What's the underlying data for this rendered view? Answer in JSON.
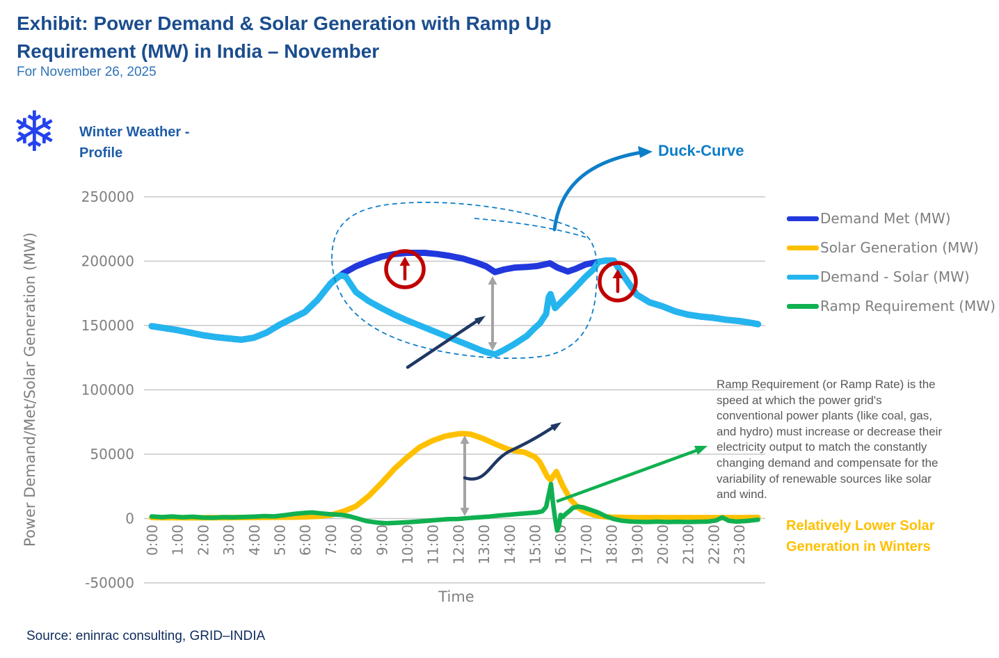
{
  "header": {
    "title": "Exhibit: Power Demand & Solar Generation with Ramp Up Requirement (MW) in India – November",
    "subtitle": "For November 26, 2025"
  },
  "winter_profile": {
    "icon": "snowflake-icon",
    "glyph": "❄",
    "label": "Winter Weather - Profile"
  },
  "annotations": {
    "duck_curve_label": "Duck-Curve",
    "ramp_note": "Ramp Requirement (or Ramp Rate) is the speed at which the power grid's conventional power plants (like coal, gas, and hydro) must increase or decrease their electricity output to match the constantly changing demand and compensate for the variability of renewable sources like solar and wind.",
    "low_solar_note": "Relatively Lower Solar Generation in Winters",
    "accent_colors": {
      "duck_arrow_blue": "#0E7EC8",
      "ramp_up_circle_red": "#C00000",
      "pointer_navy": "#1F3864",
      "gap_arrow_gray": "#A3A3A3",
      "low_solar_arrow_green": "#10B050"
    }
  },
  "footer": {
    "source": "Source: eninrac consulting, GRID–INDIA"
  },
  "legend": {
    "position": "right",
    "items": [
      {
        "label": "Demand Met (MW)",
        "color": "#2238DC"
      },
      {
        "label": "Solar Generation (MW)",
        "color": "#FFC000"
      },
      {
        "label": "Demand - Solar (MW)",
        "color": "#25B5EE"
      },
      {
        "label": "Ramp Requirement (MW)",
        "color": "#10B050"
      }
    ]
  },
  "chart_data": {
    "type": "line",
    "title": "Power Demand & Solar Generation with Ramp Up Requirement (MW) in India – November, for November 26, 2025",
    "xlabel": "Time",
    "ylabel": "Power Demand/Met/Solar Generation (MW)",
    "grid": true,
    "ylim": [
      -50000,
      250000
    ],
    "xlim_hours": [
      0,
      23.75
    ],
    "x_ticks": [
      "0:00",
      "1:00",
      "2:00",
      "3:00",
      "4:00",
      "5:00",
      "6:00",
      "7:00",
      "8:00",
      "9:00",
      "10:00",
      "11:00",
      "12:00",
      "13:00",
      "14:00",
      "15:00",
      "16:00",
      "17:00",
      "18:00",
      "19:00",
      "20:00",
      "21:00",
      "22:00",
      "23:00"
    ],
    "y_ticks": [
      {
        "label": "250000",
        "value": 250000
      },
      {
        "label": "200000",
        "value": 200000
      },
      {
        "label": "150000",
        "value": 150000
      },
      {
        "label": "100000",
        "value": 100000
      },
      {
        "label": "50000",
        "value": 50000
      },
      {
        "label": "0",
        "value": 0
      },
      {
        "label": "-50000",
        "value": -50000
      }
    ],
    "series": [
      {
        "name": "Demand Met (MW)",
        "color": "#2238DC",
        "points": [
          [
            0,
            149500
          ],
          [
            0.5,
            148000
          ],
          [
            1,
            146500
          ],
          [
            1.5,
            144500
          ],
          [
            2,
            142500
          ],
          [
            2.5,
            141000
          ],
          [
            3,
            140000
          ],
          [
            3.5,
            139000
          ],
          [
            4,
            140500
          ],
          [
            4.5,
            144500
          ],
          [
            5,
            150500
          ],
          [
            5.5,
            155500
          ],
          [
            6,
            160500
          ],
          [
            6.5,
            170000
          ],
          [
            7,
            182500
          ],
          [
            7.2,
            186000
          ],
          [
            7.5,
            190500
          ],
          [
            8,
            196000
          ],
          [
            8.5,
            200000
          ],
          [
            9,
            203500
          ],
          [
            9.5,
            205500
          ],
          [
            10,
            206500
          ],
          [
            10.7,
            206500
          ],
          [
            11.2,
            205500
          ],
          [
            11.7,
            204000
          ],
          [
            12.2,
            202000
          ],
          [
            12.7,
            199000
          ],
          [
            13.1,
            196000
          ],
          [
            13.45,
            191500
          ],
          [
            13.8,
            193500
          ],
          [
            14.2,
            195000
          ],
          [
            14.7,
            195500
          ],
          [
            15.1,
            196200
          ],
          [
            15.6,
            198400
          ],
          [
            15.9,
            195000
          ],
          [
            16.3,
            192000
          ],
          [
            16.6,
            194000
          ],
          [
            17,
            197500
          ],
          [
            17.5,
            199500
          ],
          [
            17.8,
            200500
          ],
          [
            18.1,
            200300
          ],
          [
            18.4,
            191000
          ],
          [
            18.7,
            182500
          ],
          [
            19,
            174000
          ],
          [
            19.5,
            168000
          ],
          [
            20,
            165000
          ],
          [
            20.5,
            161000
          ],
          [
            21,
            158500
          ],
          [
            21.5,
            157000
          ],
          [
            22,
            156000
          ],
          [
            22.5,
            154500
          ],
          [
            23,
            153500
          ],
          [
            23.5,
            152000
          ],
          [
            23.75,
            151000
          ]
        ]
      },
      {
        "name": "Solar Generation (MW)",
        "color": "#FFC000",
        "points": [
          [
            0,
            800
          ],
          [
            0.5,
            700
          ],
          [
            1,
            700
          ],
          [
            1.5,
            600
          ],
          [
            2,
            600
          ],
          [
            2.5,
            700
          ],
          [
            3,
            700
          ],
          [
            3.5,
            800
          ],
          [
            4,
            800
          ],
          [
            4.5,
            900
          ],
          [
            5,
            1000
          ],
          [
            5.5,
            1100
          ],
          [
            6,
            1300
          ],
          [
            6.5,
            1700
          ],
          [
            7,
            2600
          ],
          [
            7.5,
            5500
          ],
          [
            8,
            9500
          ],
          [
            8.5,
            17500
          ],
          [
            9,
            27500
          ],
          [
            9.5,
            38500
          ],
          [
            10,
            47500
          ],
          [
            10.5,
            55500
          ],
          [
            11,
            60500
          ],
          [
            11.5,
            64000
          ],
          [
            12,
            65800
          ],
          [
            12.2,
            66000
          ],
          [
            12.5,
            65500
          ],
          [
            13,
            62000
          ],
          [
            13.5,
            57500
          ],
          [
            14,
            53500
          ],
          [
            14.6,
            51500
          ],
          [
            15,
            48000
          ],
          [
            15.2,
            44000
          ],
          [
            15.5,
            32500
          ],
          [
            15.62,
            30000
          ],
          [
            15.85,
            36500
          ],
          [
            16.1,
            25500
          ],
          [
            16.4,
            15000
          ],
          [
            16.7,
            8500
          ],
          [
            16.95,
            5500
          ],
          [
            17.3,
            3000
          ],
          [
            17.6,
            1700
          ],
          [
            18,
            1000
          ],
          [
            18.5,
            800
          ],
          [
            19,
            700
          ],
          [
            20,
            700
          ],
          [
            21,
            700
          ],
          [
            22,
            700
          ],
          [
            23,
            700
          ],
          [
            23.75,
            800
          ]
        ]
      },
      {
        "name": "Demand - Solar (MW)",
        "color": "#25B5EE",
        "points": [
          [
            0,
            149500
          ],
          [
            0.5,
            148000
          ],
          [
            1,
            146500
          ],
          [
            1.5,
            144500
          ],
          [
            2,
            142500
          ],
          [
            2.5,
            141000
          ],
          [
            3,
            140000
          ],
          [
            3.5,
            139000
          ],
          [
            4,
            140500
          ],
          [
            4.5,
            144500
          ],
          [
            5,
            150500
          ],
          [
            5.5,
            155500
          ],
          [
            6,
            160500
          ],
          [
            6.5,
            170000
          ],
          [
            7,
            182500
          ],
          [
            7.2,
            186000
          ],
          [
            7.4,
            189000
          ],
          [
            7.6,
            188000
          ],
          [
            8,
            176000
          ],
          [
            8.5,
            169000
          ],
          [
            9,
            163500
          ],
          [
            9.5,
            158500
          ],
          [
            10,
            154000
          ],
          [
            10.5,
            150000
          ],
          [
            11,
            146000
          ],
          [
            11.5,
            142000
          ],
          [
            12,
            138000
          ],
          [
            12.5,
            134000
          ],
          [
            13,
            130000
          ],
          [
            13.45,
            127500
          ],
          [
            13.8,
            131000
          ],
          [
            14.2,
            135500
          ],
          [
            14.7,
            142000
          ],
          [
            15,
            148000
          ],
          [
            15.2,
            151500
          ],
          [
            15.45,
            159000
          ],
          [
            15.55,
            172000
          ],
          [
            15.62,
            174500
          ],
          [
            15.8,
            163500
          ],
          [
            16,
            167500
          ],
          [
            16.5,
            177500
          ],
          [
            17,
            188000
          ],
          [
            17.3,
            193500
          ],
          [
            17.5,
            199500
          ],
          [
            17.8,
            200500
          ],
          [
            18.1,
            200300
          ],
          [
            18.4,
            191000
          ],
          [
            18.7,
            182500
          ],
          [
            19,
            174000
          ],
          [
            19.5,
            168000
          ],
          [
            20,
            165000
          ],
          [
            20.5,
            161000
          ],
          [
            21,
            158500
          ],
          [
            21.5,
            157000
          ],
          [
            22,
            156000
          ],
          [
            22.5,
            154500
          ],
          [
            23,
            153500
          ],
          [
            23.5,
            152000
          ],
          [
            23.75,
            151000
          ]
        ]
      },
      {
        "name": "Ramp Requirement (MW)",
        "color": "#10B050",
        "points": [
          [
            0,
            1600
          ],
          [
            0.4,
            1100
          ],
          [
            0.8,
            1600
          ],
          [
            1.2,
            1000
          ],
          [
            1.6,
            1400
          ],
          [
            2,
            800
          ],
          [
            2.4,
            600
          ],
          [
            2.8,
            1100
          ],
          [
            3.2,
            900
          ],
          [
            3.6,
            1200
          ],
          [
            4,
            1500
          ],
          [
            4.4,
            1900
          ],
          [
            4.8,
            1700
          ],
          [
            5.2,
            2600
          ],
          [
            5.6,
            3700
          ],
          [
            6,
            4400
          ],
          [
            6.3,
            4700
          ],
          [
            6.7,
            3900
          ],
          [
            7,
            3300
          ],
          [
            7.4,
            2900
          ],
          [
            7.7,
            2000
          ],
          [
            8,
            400
          ],
          [
            8.4,
            -1900
          ],
          [
            8.8,
            -3100
          ],
          [
            9.2,
            -3600
          ],
          [
            9.6,
            -3300
          ],
          [
            10,
            -2900
          ],
          [
            10.4,
            -2400
          ],
          [
            10.8,
            -1800
          ],
          [
            11.2,
            -1100
          ],
          [
            11.6,
            -500
          ],
          [
            12,
            -300
          ],
          [
            12.4,
            400
          ],
          [
            12.8,
            900
          ],
          [
            13.2,
            1500
          ],
          [
            13.6,
            2300
          ],
          [
            14,
            3000
          ],
          [
            14.4,
            3600
          ],
          [
            14.8,
            4300
          ],
          [
            15.1,
            4800
          ],
          [
            15.3,
            5600
          ],
          [
            15.45,
            9000
          ],
          [
            15.64,
            26800
          ],
          [
            15.72,
            12000
          ],
          [
            15.8,
            0
          ],
          [
            15.88,
            -9300
          ],
          [
            15.95,
            -6000
          ],
          [
            16.02,
            2800
          ],
          [
            16.1,
            1200
          ],
          [
            16.2,
            3300
          ],
          [
            16.35,
            5600
          ],
          [
            16.5,
            8300
          ],
          [
            16.7,
            9300
          ],
          [
            16.9,
            8700
          ],
          [
            17.2,
            6700
          ],
          [
            17.5,
            4600
          ],
          [
            17.8,
            1700
          ],
          [
            18.1,
            -400
          ],
          [
            18.4,
            -1600
          ],
          [
            18.7,
            -2200
          ],
          [
            19,
            -2500
          ],
          [
            19.4,
            -2700
          ],
          [
            19.8,
            -2400
          ],
          [
            20.2,
            -2700
          ],
          [
            20.6,
            -2500
          ],
          [
            21,
            -2700
          ],
          [
            21.4,
            -2500
          ],
          [
            21.8,
            -2300
          ],
          [
            22.1,
            -1500
          ],
          [
            22.35,
            900
          ],
          [
            22.6,
            -1700
          ],
          [
            22.9,
            -2400
          ],
          [
            23.3,
            -1900
          ],
          [
            23.75,
            -900
          ]
        ]
      }
    ]
  }
}
